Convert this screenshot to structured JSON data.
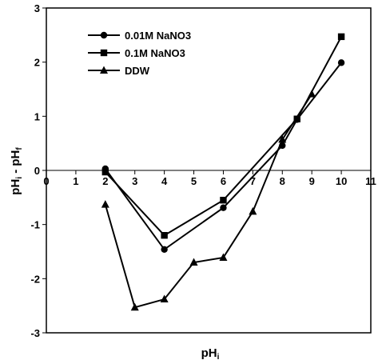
{
  "chart_data": {
    "type": "line",
    "xlabel": "pH",
    "xlabel_sub": "i",
    "ylabel_parts": [
      "pH",
      "i",
      " - pH",
      "f"
    ],
    "xlim": [
      0,
      11
    ],
    "ylim": [
      -3,
      3
    ],
    "x_ticks": [
      0,
      1,
      2,
      3,
      4,
      5,
      6,
      7,
      8,
      9,
      10,
      11
    ],
    "y_ticks": [
      -3,
      -2,
      -1,
      0,
      1,
      2,
      3
    ],
    "x_tick_labels": [
      "0",
      "1",
      "2",
      "3",
      "4",
      "5",
      "6",
      "7",
      "8",
      "9",
      "10",
      "11"
    ],
    "y_tick_labels": [
      "-3",
      "-2",
      "-1",
      "0",
      "1",
      "2",
      "3"
    ],
    "grid": false,
    "legend_position": "top-left",
    "series": [
      {
        "name": "0.01M NaNO3",
        "marker": "circle",
        "x": [
          2,
          4,
          6,
          8,
          8.5,
          10
        ],
        "y": [
          0.03,
          -1.46,
          -0.69,
          0.46,
          0.94,
          1.99
        ]
      },
      {
        "name": "0.1M NaNO3",
        "marker": "square",
        "x": [
          2,
          4,
          6,
          8.5,
          10
        ],
        "y": [
          -0.03,
          -1.2,
          -0.55,
          0.95,
          2.47
        ]
      },
      {
        "name": "DDW",
        "marker": "triangle",
        "x": [
          2,
          3,
          4,
          5,
          6,
          7,
          8,
          9
        ],
        "y": [
          -0.63,
          -2.53,
          -2.38,
          -1.7,
          -1.61,
          -0.76,
          0.57,
          1.41
        ]
      }
    ]
  }
}
